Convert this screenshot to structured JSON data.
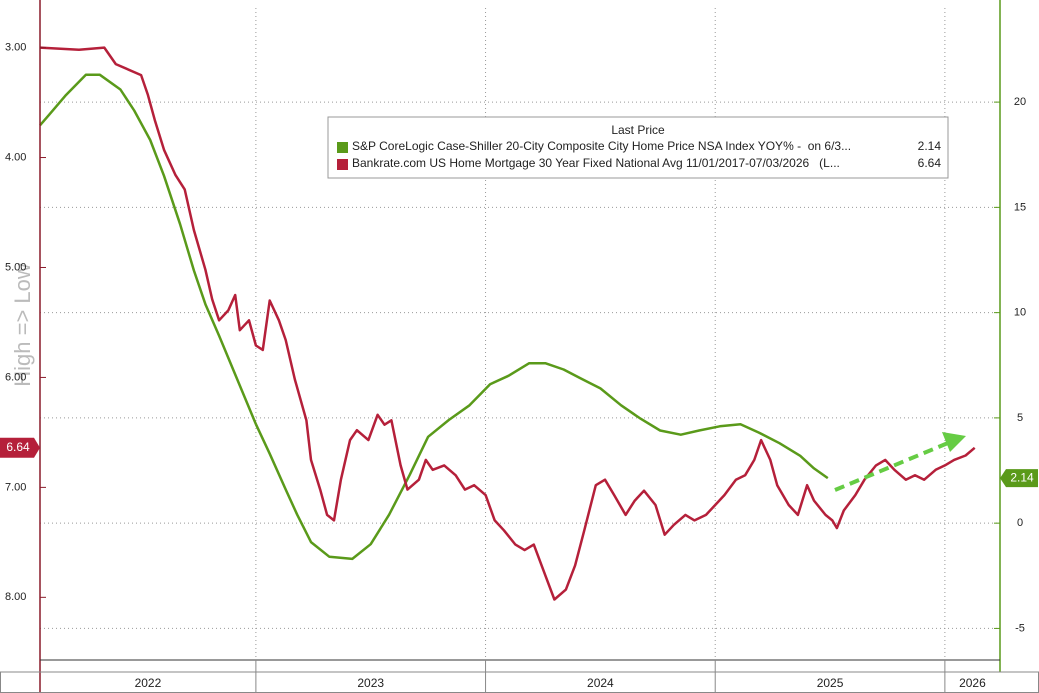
{
  "chart_data": {
    "type": "line",
    "y_axis_label": "High => Low",
    "legend_title": "Last Price",
    "xlim": [
      2022.06,
      2026.24
    ],
    "xticks": [
      2022,
      2023,
      2024,
      2025,
      2026
    ],
    "ylim": [
      8.57,
      2.64
    ],
    "yticks": [
      {
        "value": 3,
        "label": "3.00"
      },
      {
        "value": 4,
        "label": "4.00"
      },
      {
        "value": 5,
        "label": "5.00"
      },
      {
        "value": 6,
        "label": "6.00"
      },
      {
        "value": 7,
        "label": "7.00"
      },
      {
        "value": 8,
        "label": "8.00"
      }
    ],
    "y2lim": [
      -6.5,
      24.47
    ],
    "y2ticks": [
      -5,
      0,
      5,
      10,
      15,
      20
    ],
    "grid": true,
    "series": [
      {
        "name": "S&P CoreLogic Case-Shiller 20-City Composite City Home Price NSA Index YOY% -  on 6/3...",
        "color": "#5a9a1a",
        "axis": "y2",
        "x": [
          2022.06,
          2022.1,
          2022.17,
          2022.26,
          2022.32,
          2022.41,
          2022.47,
          2022.54,
          2022.6,
          2022.67,
          2022.73,
          2022.78,
          2022.84,
          2022.92,
          2023.0,
          2023.06,
          2023.13,
          2023.18,
          2023.24,
          2023.32,
          2023.42,
          2023.5,
          2023.58,
          2023.67,
          2023.75,
          2023.84,
          2023.93,
          2024.02,
          2024.1,
          2024.19,
          2024.26,
          2024.34,
          2024.41,
          2024.5,
          2024.59,
          2024.67,
          2024.76,
          2024.85,
          2024.93,
          2025.02,
          2025.11,
          2025.19,
          2025.28,
          2025.37,
          2025.43,
          2025.49
        ],
        "values": [
          18.9,
          19.4,
          20.3,
          21.3,
          21.3,
          20.6,
          19.6,
          18.2,
          16.5,
          14.2,
          12.0,
          10.4,
          8.9,
          6.8,
          4.7,
          3.3,
          1.6,
          0.4,
          -0.9,
          -1.6,
          -1.7,
          -1.0,
          0.4,
          2.3,
          4.1,
          4.9,
          5.6,
          6.6,
          7.0,
          7.6,
          7.6,
          7.3,
          6.9,
          6.4,
          5.6,
          5.0,
          4.4,
          4.2,
          4.4,
          4.6,
          4.7,
          4.3,
          3.8,
          3.2,
          2.6,
          2.14
        ]
      },
      {
        "name": "Bankrate.com US Home Mortgage 30 Year Fixed National Avg 11/01/2017-07/03/2026   (L...",
        "color": "#b5203a",
        "axis": "y",
        "x": [
          2022.06,
          2022.23,
          2022.34,
          2022.39,
          2022.5,
          2022.53,
          2022.56,
          2022.6,
          2022.65,
          2022.69,
          2022.73,
          2022.78,
          2022.81,
          2022.84,
          2022.88,
          2022.91,
          2022.93,
          2022.97,
          2023.0,
          2023.03,
          2023.06,
          2023.1,
          2023.13,
          2023.17,
          2023.22,
          2023.24,
          2023.28,
          2023.31,
          2023.34,
          2023.37,
          2023.41,
          2023.44,
          2023.49,
          2023.53,
          2023.56,
          2023.59,
          2023.63,
          2023.66,
          2023.71,
          2023.74,
          2023.77,
          2023.82,
          2023.87,
          2023.91,
          2023.95,
          2024.0,
          2024.04,
          2024.08,
          2024.13,
          2024.17,
          2024.21,
          2024.26,
          2024.3,
          2024.35,
          2024.39,
          2024.43,
          2024.48,
          2024.52,
          2024.56,
          2024.61,
          2024.65,
          2024.69,
          2024.74,
          2024.78,
          2024.82,
          2024.87,
          2024.91,
          2024.96,
          2025.0,
          2025.04,
          2025.09,
          2025.13,
          2025.17,
          2025.2,
          2025.24,
          2025.27,
          2025.32,
          2025.36,
          2025.4,
          2025.43,
          2025.48,
          2025.51,
          2025.53,
          2025.56,
          2025.61,
          2025.65,
          2025.7,
          2025.74,
          2025.78,
          2025.83,
          2025.87,
          2025.91,
          2025.96,
          2026.0,
          2026.04,
          2026.09,
          2026.13
        ],
        "values": [
          3.0,
          3.02,
          3.0,
          3.15,
          3.25,
          3.43,
          3.66,
          3.93,
          4.16,
          4.29,
          4.66,
          5.02,
          5.29,
          5.48,
          5.39,
          5.25,
          5.57,
          5.48,
          5.71,
          5.75,
          5.3,
          5.48,
          5.66,
          6.02,
          6.39,
          6.75,
          7.02,
          7.25,
          7.3,
          6.93,
          6.57,
          6.48,
          6.57,
          6.34,
          6.43,
          6.39,
          6.8,
          7.02,
          6.93,
          6.75,
          6.84,
          6.8,
          6.89,
          7.02,
          6.98,
          7.07,
          7.3,
          7.39,
          7.52,
          7.57,
          7.52,
          7.8,
          8.02,
          7.93,
          7.71,
          7.39,
          6.98,
          6.93,
          7.07,
          7.25,
          7.12,
          7.03,
          7.16,
          7.43,
          7.34,
          7.25,
          7.3,
          7.25,
          7.16,
          7.07,
          6.93,
          6.89,
          6.75,
          6.57,
          6.75,
          6.98,
          7.16,
          7.25,
          6.98,
          7.12,
          7.25,
          7.3,
          7.37,
          7.21,
          7.07,
          6.93,
          6.8,
          6.75,
          6.84,
          6.93,
          6.89,
          6.93,
          6.84,
          6.8,
          6.75,
          6.71,
          6.64
        ]
      }
    ]
  }
}
